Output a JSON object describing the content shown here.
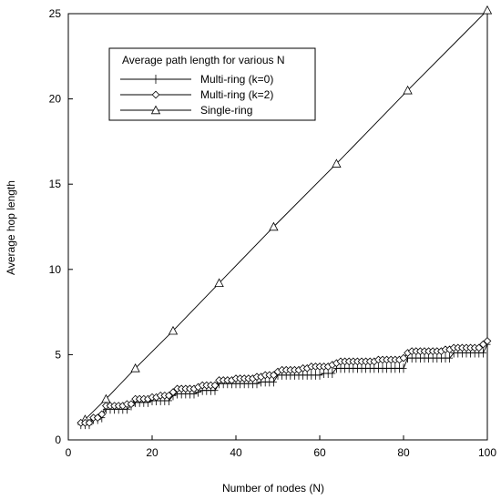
{
  "chart_data": {
    "type": "line",
    "title": "",
    "xlabel": "Number of nodes (N)",
    "ylabel": "Average hop length",
    "xlim": [
      0,
      100
    ],
    "ylim": [
      0,
      25
    ],
    "xticks": [
      0,
      20,
      40,
      60,
      80,
      100
    ],
    "yticks": [
      0,
      5,
      10,
      15,
      20,
      25
    ],
    "grid": false,
    "legend": {
      "title": "Average path length for various N",
      "placement": "top-left"
    },
    "series": [
      {
        "name": "Multi-ring (k=0)",
        "marker": "plus",
        "color": "#000000",
        "x": [
          3,
          4,
          5,
          6,
          7,
          8,
          9,
          10,
          11,
          12,
          13,
          14,
          15,
          16,
          17,
          18,
          19,
          20,
          21,
          22,
          23,
          24,
          25,
          26,
          27,
          28,
          29,
          30,
          31,
          32,
          33,
          34,
          35,
          36,
          37,
          38,
          39,
          40,
          41,
          42,
          43,
          44,
          45,
          46,
          47,
          48,
          49,
          50,
          51,
          52,
          53,
          54,
          55,
          56,
          57,
          58,
          59,
          60,
          61,
          62,
          63,
          64,
          65,
          66,
          67,
          68,
          69,
          70,
          71,
          72,
          73,
          74,
          75,
          76,
          77,
          78,
          79,
          80,
          81,
          82,
          83,
          84,
          85,
          86,
          87,
          88,
          89,
          90,
          91,
          92,
          93,
          94,
          95,
          96,
          97,
          98,
          99,
          100
        ],
        "y": [
          0.9,
          0.9,
          0.9,
          1.2,
          1.2,
          1.3,
          1.8,
          1.8,
          1.8,
          1.8,
          1.8,
          1.8,
          2.0,
          2.2,
          2.2,
          2.2,
          2.2,
          2.3,
          2.3,
          2.3,
          2.3,
          2.3,
          2.6,
          2.7,
          2.7,
          2.7,
          2.7,
          2.7,
          2.8,
          2.9,
          2.9,
          2.9,
          2.9,
          3.3,
          3.3,
          3.3,
          3.3,
          3.3,
          3.3,
          3.3,
          3.3,
          3.3,
          3.3,
          3.4,
          3.4,
          3.4,
          3.4,
          3.8,
          3.8,
          3.8,
          3.8,
          3.8,
          3.8,
          3.8,
          3.8,
          3.8,
          3.8,
          3.8,
          3.9,
          3.9,
          3.9,
          4.2,
          4.2,
          4.2,
          4.2,
          4.2,
          4.2,
          4.2,
          4.2,
          4.2,
          4.2,
          4.2,
          4.2,
          4.2,
          4.2,
          4.2,
          4.2,
          4.2,
          4.8,
          4.8,
          4.8,
          4.8,
          4.8,
          4.8,
          4.8,
          4.8,
          4.8,
          4.8,
          4.8,
          5.1,
          5.1,
          5.1,
          5.1,
          5.1,
          5.1,
          5.1,
          5.1,
          5.6
        ]
      },
      {
        "name": "Multi-ring (k=2)",
        "marker": "diamond",
        "color": "#000000",
        "x": [
          3,
          4,
          5,
          6,
          7,
          8,
          9,
          10,
          11,
          12,
          13,
          14,
          15,
          16,
          17,
          18,
          19,
          20,
          21,
          22,
          23,
          24,
          25,
          26,
          27,
          28,
          29,
          30,
          31,
          32,
          33,
          34,
          35,
          36,
          37,
          38,
          39,
          40,
          41,
          42,
          43,
          44,
          45,
          46,
          47,
          48,
          49,
          50,
          51,
          52,
          53,
          54,
          55,
          56,
          57,
          58,
          59,
          60,
          61,
          62,
          63,
          64,
          65,
          66,
          67,
          68,
          69,
          70,
          71,
          72,
          73,
          74,
          75,
          76,
          77,
          78,
          79,
          80,
          81,
          82,
          83,
          84,
          85,
          86,
          87,
          88,
          89,
          90,
          91,
          92,
          93,
          94,
          95,
          96,
          97,
          98,
          99,
          100
        ],
        "y": [
          1.0,
          1.0,
          1.0,
          1.3,
          1.3,
          1.5,
          2.0,
          2.0,
          2.0,
          2.0,
          2.0,
          2.1,
          2.1,
          2.4,
          2.4,
          2.4,
          2.4,
          2.5,
          2.5,
          2.6,
          2.6,
          2.6,
          2.8,
          3.0,
          3.0,
          3.0,
          3.0,
          3.0,
          3.1,
          3.2,
          3.2,
          3.2,
          3.2,
          3.5,
          3.5,
          3.5,
          3.5,
          3.6,
          3.6,
          3.6,
          3.6,
          3.6,
          3.7,
          3.7,
          3.8,
          3.8,
          3.8,
          4.0,
          4.1,
          4.1,
          4.1,
          4.1,
          4.1,
          4.2,
          4.2,
          4.3,
          4.3,
          4.3,
          4.3,
          4.3,
          4.4,
          4.5,
          4.6,
          4.6,
          4.6,
          4.6,
          4.6,
          4.6,
          4.6,
          4.6,
          4.6,
          4.7,
          4.7,
          4.7,
          4.7,
          4.7,
          4.7,
          4.8,
          5.1,
          5.2,
          5.2,
          5.2,
          5.2,
          5.2,
          5.2,
          5.2,
          5.2,
          5.3,
          5.3,
          5.4,
          5.4,
          5.4,
          5.4,
          5.4,
          5.4,
          5.4,
          5.6,
          5.8
        ]
      },
      {
        "name": "Single-ring",
        "marker": "triangle",
        "color": "#000000",
        "x": [
          4,
          9,
          16,
          25,
          36,
          49,
          64,
          81,
          100
        ],
        "y": [
          1.2,
          2.4,
          4.2,
          6.4,
          9.2,
          12.5,
          16.2,
          20.5,
          25.2
        ]
      }
    ]
  }
}
